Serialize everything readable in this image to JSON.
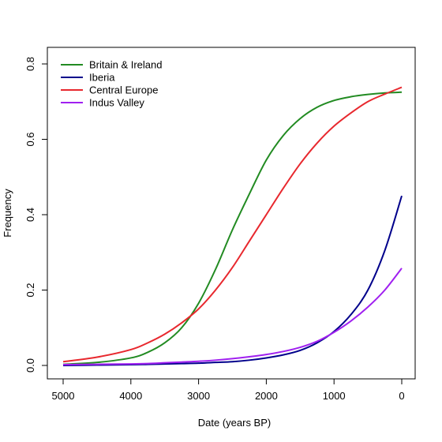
{
  "chart_data": {
    "type": "line",
    "title": "",
    "xlabel": "Date (years BP)",
    "ylabel": "Frequency",
    "xlim": [
      5000,
      0
    ],
    "ylim": [
      0,
      0.8
    ],
    "x_ticks": [
      5000,
      4000,
      3000,
      2000,
      1000,
      0
    ],
    "y_ticks": [
      0.0,
      0.2,
      0.4,
      0.6,
      0.8
    ],
    "x_tick_labels": [
      "5000",
      "4000",
      "3000",
      "2000",
      "1000",
      "0"
    ],
    "y_tick_labels": [
      "0.0",
      "0.2",
      "0.4",
      "0.6",
      "0.8"
    ],
    "grid": false,
    "legend_position": "top-left",
    "x": [
      5000,
      4500,
      4000,
      3750,
      3500,
      3250,
      3000,
      2750,
      2500,
      2250,
      2000,
      1750,
      1500,
      1250,
      1000,
      750,
      500,
      250,
      0
    ],
    "series": [
      {
        "name": "Britain & Ireland",
        "color": "#228B22",
        "values": [
          0.003,
          0.008,
          0.02,
          0.035,
          0.06,
          0.1,
          0.165,
          0.255,
          0.36,
          0.455,
          0.545,
          0.61,
          0.655,
          0.685,
          0.703,
          0.713,
          0.719,
          0.723,
          0.725
        ]
      },
      {
        "name": "Iberia",
        "color": "#00008B",
        "values": [
          0.0,
          0.001,
          0.002,
          0.003,
          0.004,
          0.005,
          0.006,
          0.008,
          0.01,
          0.014,
          0.02,
          0.028,
          0.04,
          0.06,
          0.09,
          0.135,
          0.2,
          0.305,
          0.45
        ]
      },
      {
        "name": "Central Europe",
        "color": "#E8282E",
        "values": [
          0.01,
          0.022,
          0.042,
          0.06,
          0.083,
          0.113,
          0.15,
          0.2,
          0.26,
          0.33,
          0.4,
          0.47,
          0.535,
          0.59,
          0.635,
          0.67,
          0.7,
          0.72,
          0.738
        ]
      },
      {
        "name": "Indus Valley",
        "color": "#A020F0",
        "values": [
          0.002,
          0.003,
          0.004,
          0.005,
          0.007,
          0.009,
          0.011,
          0.014,
          0.018,
          0.023,
          0.029,
          0.037,
          0.048,
          0.064,
          0.088,
          0.118,
          0.155,
          0.2,
          0.258
        ]
      }
    ]
  }
}
